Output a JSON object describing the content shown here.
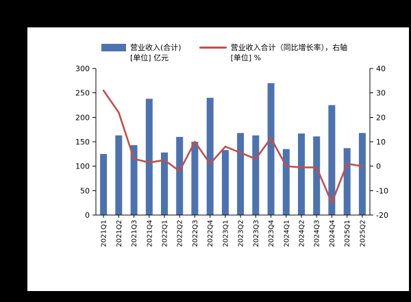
{
  "page": {
    "background": "#000000",
    "panel_background": "#ffffff"
  },
  "legend": {
    "bar_series": {
      "label": "营业收入(合计)",
      "unit": "[单位] 亿元"
    },
    "line_series": {
      "label": "营业收入合计（同比增长率），右轴",
      "unit": "[单位] %"
    }
  },
  "chart_data": {
    "type": "bar",
    "subtype": "bar+line dual axis",
    "title": "",
    "xlabel": "",
    "ylabel_left": "亿元",
    "ylabel_right": "%",
    "grid": false,
    "legend_position": "top",
    "categories": [
      "2021Q1",
      "2021Q2",
      "2021Q3",
      "2021Q4",
      "2022Q1",
      "2022Q2",
      "2022Q3",
      "2022Q4",
      "2023Q1",
      "2023Q2",
      "2023Q3",
      "2023Q4",
      "2024Q1",
      "2024Q2",
      "2024Q3",
      "2024Q4",
      "2025Q1",
      "2025Q2"
    ],
    "series": [
      {
        "name": "营业收入(合计)",
        "type": "bar",
        "axis": "left",
        "unit": "亿元",
        "color": "#4C73B0",
        "values": [
          125,
          163,
          143,
          238,
          128,
          160,
          150,
          240,
          133,
          168,
          163,
          270,
          135,
          167,
          161,
          225,
          137,
          168
        ]
      },
      {
        "name": "营业收入合计（同比增长率），右轴",
        "type": "line",
        "axis": "right",
        "unit": "%",
        "color": "#C0504D",
        "values": [
          31,
          22,
          3,
          1.5,
          2.5,
          -2,
          10,
          1,
          8,
          5.5,
          3,
          11.5,
          0,
          -0.5,
          -0.5,
          -15,
          1,
          0
        ]
      }
    ],
    "left_axis": {
      "min": 0,
      "max": 300,
      "ticks": [
        0,
        50,
        100,
        150,
        200,
        250,
        300
      ]
    },
    "right_axis": {
      "min": -20,
      "max": 40,
      "ticks": [
        -20,
        -10,
        0,
        10,
        20,
        30,
        40
      ]
    },
    "axis_color": "#000000"
  }
}
